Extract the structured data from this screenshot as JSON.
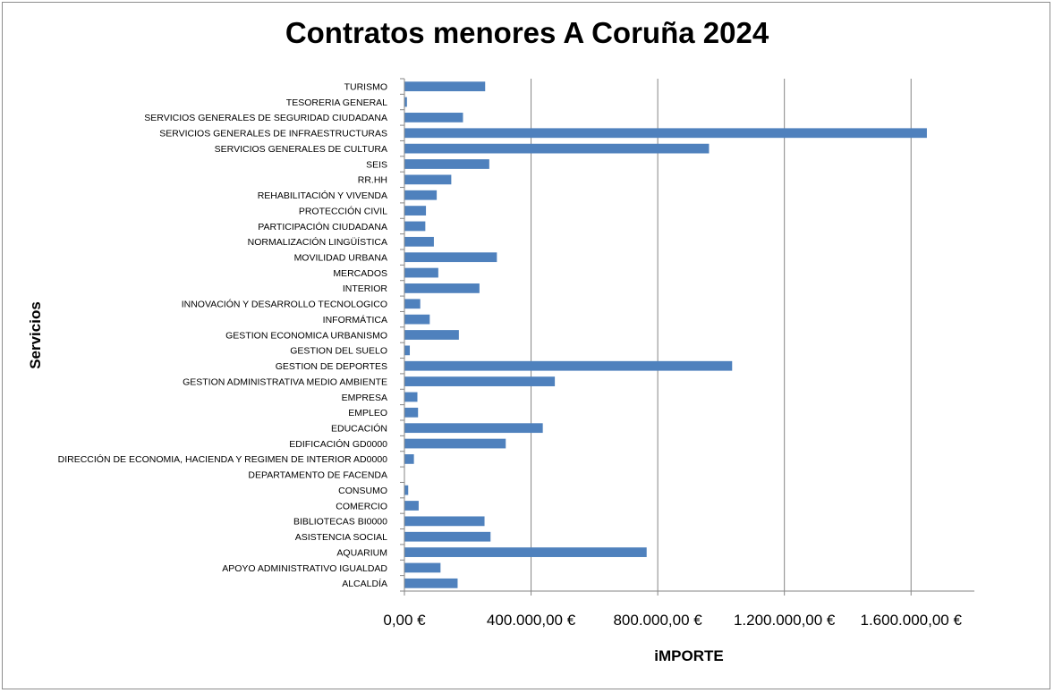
{
  "chart_data": {
    "type": "bar",
    "orientation": "horizontal",
    "title": "Contratos menores A Coruña 2024",
    "xlabel": "iMPORTE",
    "ylabel": "Servicios",
    "xlim": [
      0,
      1800000
    ],
    "x_ticks": [
      0,
      400000,
      800000,
      1200000,
      1600000
    ],
    "x_tick_labels": [
      "0,00 €",
      "400.000,00 €",
      "800.000,00 €",
      "1.200.000,00 €",
      "1.600.000,00 €"
    ],
    "grid": "vertical major gridlines",
    "legend": "none",
    "bar_color": "#4f81bd",
    "categories": [
      "TURISMO",
      "TESORERIA GENERAL",
      "SERVICIOS GENERALES DE SEGURIDAD CIUDADANA",
      "SERVICIOS GENERALES DE INFRAESTRUCTURAS",
      "SERVICIOS GENERALES DE CULTURA",
      "SEIS",
      "RR.HH",
      "REHABILITACIÓN Y VIVENDA",
      "PROTECCIÓN CIVIL",
      "PARTICIPACIÓN CIUDADANA",
      "NORMALIZACIÓN LINGÜÍSTICA",
      "MOVILIDAD URBANA",
      "MERCADOS",
      "INTERIOR",
      "INNOVACIÓN Y DESARROLLO TECNOLOGICO",
      "INFORMÁTICA",
      "GESTION ECONOMICA URBANISMO",
      "GESTION DEL SUELO",
      "GESTION DE DEPORTES",
      "GESTION ADMINISTRATIVA MEDIO AMBIENTE",
      "EMPRESA",
      "EMPLEO",
      "EDUCACIÓN",
      "EDIFICACIÓN GD0000",
      "DIRECCIÓN DE ECONOMIA, HACIENDA Y REGIMEN DE INTERIOR AD0000",
      "DEPARTAMENTO DE FACENDA",
      "CONSUMO",
      "COMERCIO",
      "BIBLIOTECAS BI0000",
      "ASISTENCIA SOCIAL",
      "AQUARIUM",
      "APOYO ADMINISTRATIVO IGUALDAD",
      "ALCALDÍA"
    ],
    "values": [
      255000,
      8000,
      185000,
      1650000,
      962000,
      268000,
      148000,
      102000,
      68000,
      66000,
      93000,
      292000,
      107000,
      237000,
      50000,
      80000,
      172000,
      17000,
      1035000,
      475000,
      41000,
      43000,
      437000,
      320000,
      30000,
      0,
      12000,
      45000,
      253000,
      272000,
      765000,
      114000,
      168000
    ]
  }
}
